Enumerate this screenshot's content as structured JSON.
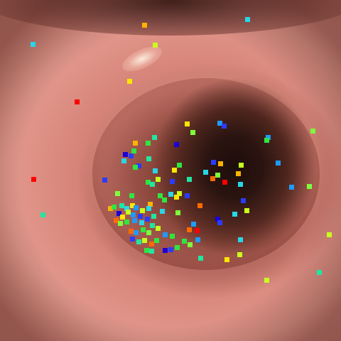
{
  "scene": {
    "subject": "endoscopic-lumen-view",
    "colors": {
      "mucosa": "#d98c80",
      "lumen": "#1c0d0b",
      "glare": "#fff5e6"
    }
  },
  "overlay": {
    "marker_palette": [
      "#ff0000",
      "#ff6a00",
      "#ffb300",
      "#ffe600",
      "#c8ff1e",
      "#7dff3c",
      "#2fe640",
      "#21e6a0",
      "#28d6e6",
      "#1e9bff",
      "#2a3cff",
      "#1a00d6"
    ],
    "markers": [
      [
        203,
        35,
        2
      ],
      [
        348,
        27,
        8
      ],
      [
        46,
        62,
        8
      ],
      [
        218,
        63,
        4
      ],
      [
        182,
        114,
        3
      ],
      [
        108,
        143,
        0
      ],
      [
        263,
        174,
        3
      ],
      [
        309,
        173,
        9
      ],
      [
        315,
        177,
        10
      ],
      [
        271,
        186,
        5
      ],
      [
        440,
        184,
        5
      ],
      [
        377,
        193,
        9
      ],
      [
        375,
        197,
        6
      ],
      [
        190,
        201,
        2
      ],
      [
        217,
        193,
        7
      ],
      [
        208,
        201,
        6
      ],
      [
        248,
        203,
        11
      ],
      [
        188,
        212,
        6
      ],
      [
        176,
        217,
        11
      ],
      [
        184,
        219,
        10
      ],
      [
        209,
        223,
        7
      ],
      [
        174,
        226,
        8
      ],
      [
        195,
        233,
        10
      ],
      [
        190,
        235,
        6
      ],
      [
        218,
        240,
        8
      ],
      [
        245,
        239,
        3
      ],
      [
        252,
        232,
        6
      ],
      [
        339,
        232,
        4
      ],
      [
        300,
        228,
        10
      ],
      [
        310,
        230,
        2
      ],
      [
        391,
        229,
        9
      ],
      [
        289,
        242,
        8
      ],
      [
        306,
        246,
        5
      ],
      [
        335,
        244,
        2
      ],
      [
        47,
        252,
        0
      ],
      [
        147,
        253,
        10
      ],
      [
        242,
        255,
        10
      ],
      [
        266,
        252,
        7
      ],
      [
        208,
        256,
        6
      ],
      [
        214,
        259,
        7
      ],
      [
        222,
        252,
        4
      ],
      [
        299,
        251,
        1
      ],
      [
        316,
        256,
        0
      ],
      [
        338,
        259,
        8
      ],
      [
        410,
        263,
        9
      ],
      [
        435,
        262,
        5
      ],
      [
        165,
        272,
        5
      ],
      [
        185,
        275,
        6
      ],
      [
        225,
        275,
        6
      ],
      [
        240,
        273,
        8
      ],
      [
        252,
        272,
        4
      ],
      [
        263,
        275,
        10
      ],
      [
        248,
        277,
        3
      ],
      [
        231,
        281,
        6
      ],
      [
        211,
        287,
        2
      ],
      [
        186,
        289,
        3
      ],
      [
        281,
        289,
        1
      ],
      [
        155,
        293,
        2
      ],
      [
        160,
        291,
        6
      ],
      [
        171,
        289,
        7
      ],
      [
        178,
        293,
        8
      ],
      [
        191,
        292,
        9
      ],
      [
        200,
        296,
        4
      ],
      [
        209,
        293,
        8
      ],
      [
        228,
        297,
        8
      ],
      [
        250,
        299,
        5
      ],
      [
        330,
        301,
        8
      ],
      [
        347,
        296,
        4
      ],
      [
        342,
        282,
        10
      ],
      [
        167,
        300,
        11
      ],
      [
        172,
        305,
        3
      ],
      [
        180,
        298,
        4
      ],
      [
        187,
        302,
        9
      ],
      [
        197,
        304,
        10
      ],
      [
        163,
        310,
        1
      ],
      [
        169,
        314,
        5
      ],
      [
        178,
        312,
        6
      ],
      [
        189,
        310,
        9
      ],
      [
        199,
        313,
        8
      ],
      [
        207,
        308,
        10
      ],
      [
        216,
        304,
        7
      ],
      [
        60,
        302,
        7
      ],
      [
        272,
        315,
        9
      ],
      [
        306,
        308,
        11
      ],
      [
        309,
        313,
        10
      ],
      [
        214,
        317,
        7
      ],
      [
        222,
        321,
        4
      ],
      [
        184,
        325,
        1
      ],
      [
        191,
        327,
        9
      ],
      [
        201,
        323,
        6
      ],
      [
        209,
        327,
        5
      ],
      [
        232,
        330,
        9
      ],
      [
        242,
        332,
        6
      ],
      [
        266,
        323,
        1
      ],
      [
        277,
        324,
        0
      ],
      [
        463,
        330,
        4
      ],
      [
        186,
        336,
        10
      ],
      [
        195,
        340,
        7
      ],
      [
        203,
        338,
        4
      ],
      [
        213,
        343,
        1
      ],
      [
        220,
        338,
        6
      ],
      [
        259,
        339,
        6
      ],
      [
        278,
        337,
        9
      ],
      [
        338,
        337,
        8
      ],
      [
        267,
        344,
        5
      ],
      [
        206,
        352,
        6
      ],
      [
        213,
        353,
        7
      ],
      [
        232,
        352,
        11
      ],
      [
        240,
        351,
        10
      ],
      [
        249,
        348,
        6
      ],
      [
        337,
        358,
        4
      ],
      [
        282,
        363,
        7
      ],
      [
        319,
        365,
        3
      ],
      [
        449,
        383,
        7
      ],
      [
        375,
        394,
        4
      ]
    ]
  }
}
